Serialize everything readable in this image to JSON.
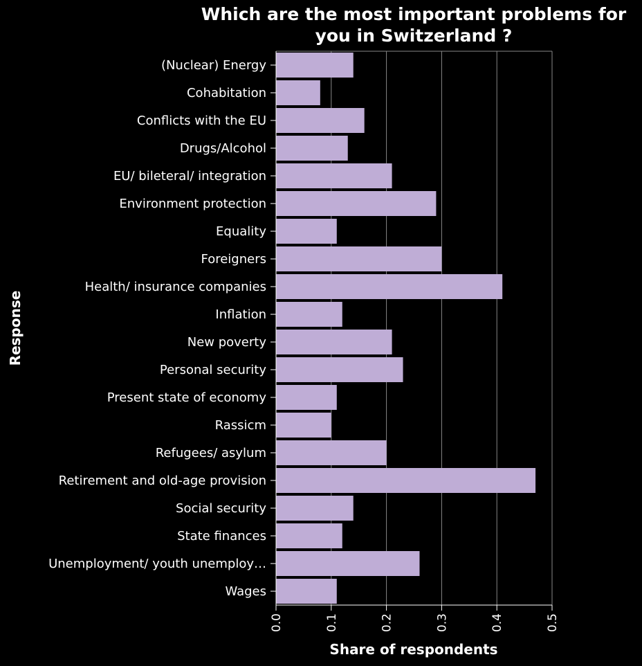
{
  "chart_data": {
    "type": "bar",
    "orientation": "horizontal",
    "title_lines": [
      "Which are the most important problems for",
      "you in Switzerland ?"
    ],
    "xlabel": "Share of respondents",
    "ylabel": "Response",
    "xlim": [
      0,
      0.5
    ],
    "xticks": [
      0.0,
      0.1,
      0.2,
      0.3,
      0.4,
      0.5
    ],
    "xtick_labels": [
      "0.0",
      "0.1",
      "0.2",
      "0.3",
      "0.4",
      "0.5"
    ],
    "grid": true,
    "categories": [
      "(Nuclear) Energy",
      "Cohabitation",
      "Conflicts with the EU",
      "Drugs/Alcohol",
      "EU/ bileteral/ integration",
      "Environment protection",
      "Equality",
      "Foreigners",
      "Health/ insurance companies",
      "Inflation",
      "New poverty",
      "Personal security",
      "Present state of economy",
      "Rassicm",
      "Refugees/ asylum",
      "Retirement and old-age provision",
      "Social security",
      "State finances",
      "Unemployment/ youth unemploy…",
      "Wages"
    ],
    "values": [
      0.14,
      0.08,
      0.16,
      0.13,
      0.21,
      0.29,
      0.11,
      0.3,
      0.41,
      0.12,
      0.21,
      0.23,
      0.11,
      0.1,
      0.2,
      0.47,
      0.14,
      0.12,
      0.26,
      0.11
    ],
    "colors": {
      "background": "#000000",
      "bar": "#bfadd6",
      "grid": "#888888",
      "axis": "#ffffff",
      "text": "#ffffff"
    }
  }
}
